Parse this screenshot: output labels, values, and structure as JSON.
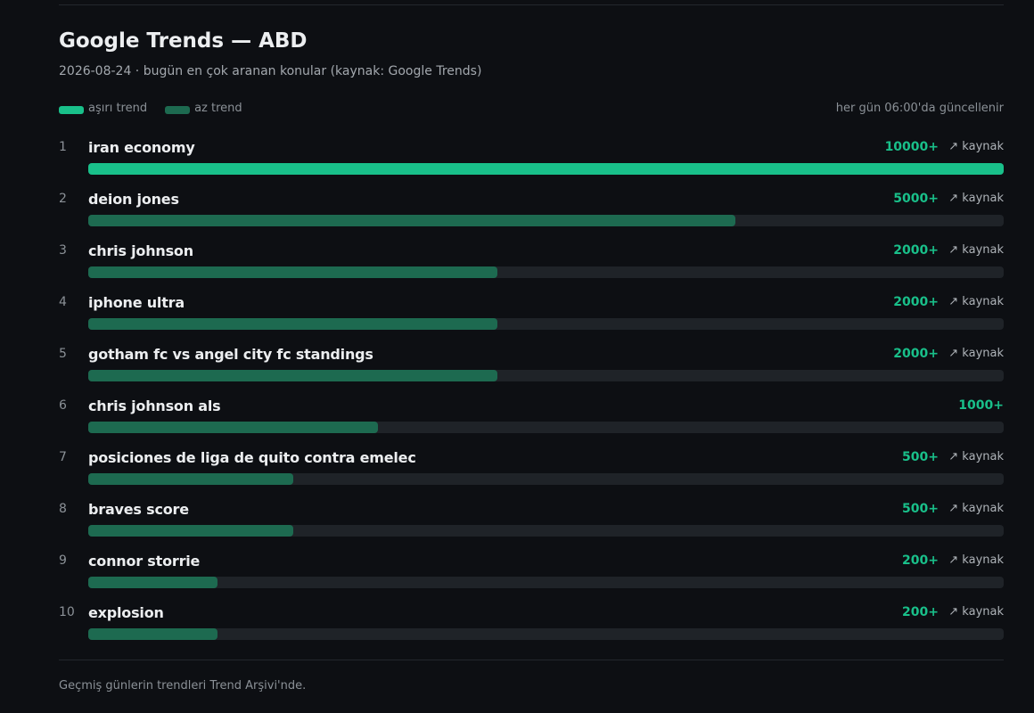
{
  "header": {
    "title": "Google Trends — ABD",
    "subtitle": "2026-08-24 · bugün en çok aranan konular (kaynak: Google Trends)"
  },
  "legend": [
    {
      "label": "aşırı trend",
      "color": "#19c08a"
    },
    {
      "label": "az trend",
      "color": "#1d6a50"
    }
  ],
  "update_note": "her gün 06:00'da güncellenir",
  "items": [
    {
      "rank": 1,
      "term": "iran economy",
      "traffic": 10000,
      "traffic_label": "10000+",
      "source": "↗ kaynak",
      "color": "#19c08a"
    },
    {
      "rank": 2,
      "term": "deion jones",
      "traffic": 5000,
      "traffic_label": "5000+",
      "source": "↗ kaynak",
      "color": "#1d6a50"
    },
    {
      "rank": 3,
      "term": "chris johnson",
      "traffic": 2000,
      "traffic_label": "2000+",
      "source": "↗ kaynak",
      "color": "#1d6a50"
    },
    {
      "rank": 4,
      "term": "iphone ultra",
      "traffic": 2000,
      "traffic_label": "2000+",
      "source": "↗ kaynak",
      "color": "#1d6a50"
    },
    {
      "rank": 5,
      "term": "gotham fc vs angel city fc standings",
      "traffic": 2000,
      "traffic_label": "2000+",
      "source": "↗ kaynak",
      "color": "#1d6a50"
    },
    {
      "rank": 6,
      "term": "chris johnson als",
      "traffic": 1000,
      "traffic_label": "1000+",
      "color": "#1d6a50"
    },
    {
      "rank": 7,
      "term": "posiciones de liga de quito contra emelec",
      "traffic": 500,
      "traffic_label": "500+",
      "source": "↗ kaynak",
      "color": "#1d6a50"
    },
    {
      "rank": 8,
      "term": "braves score",
      "traffic": 500,
      "traffic_label": "500+",
      "source": "↗ kaynak",
      "color": "#1d6a50"
    },
    {
      "rank": 9,
      "term": "connor storrie",
      "traffic": 200,
      "traffic_label": "200+",
      "source": "↗ kaynak",
      "color": "#1d6a50"
    },
    {
      "rank": 10,
      "term": "explosion",
      "traffic": 200,
      "traffic_label": "200+",
      "source": "↗ kaynak",
      "color": "#1d6a50"
    }
  ],
  "footer": "Geçmiş günlerin trendleri Trend Arşivi'nde."
}
